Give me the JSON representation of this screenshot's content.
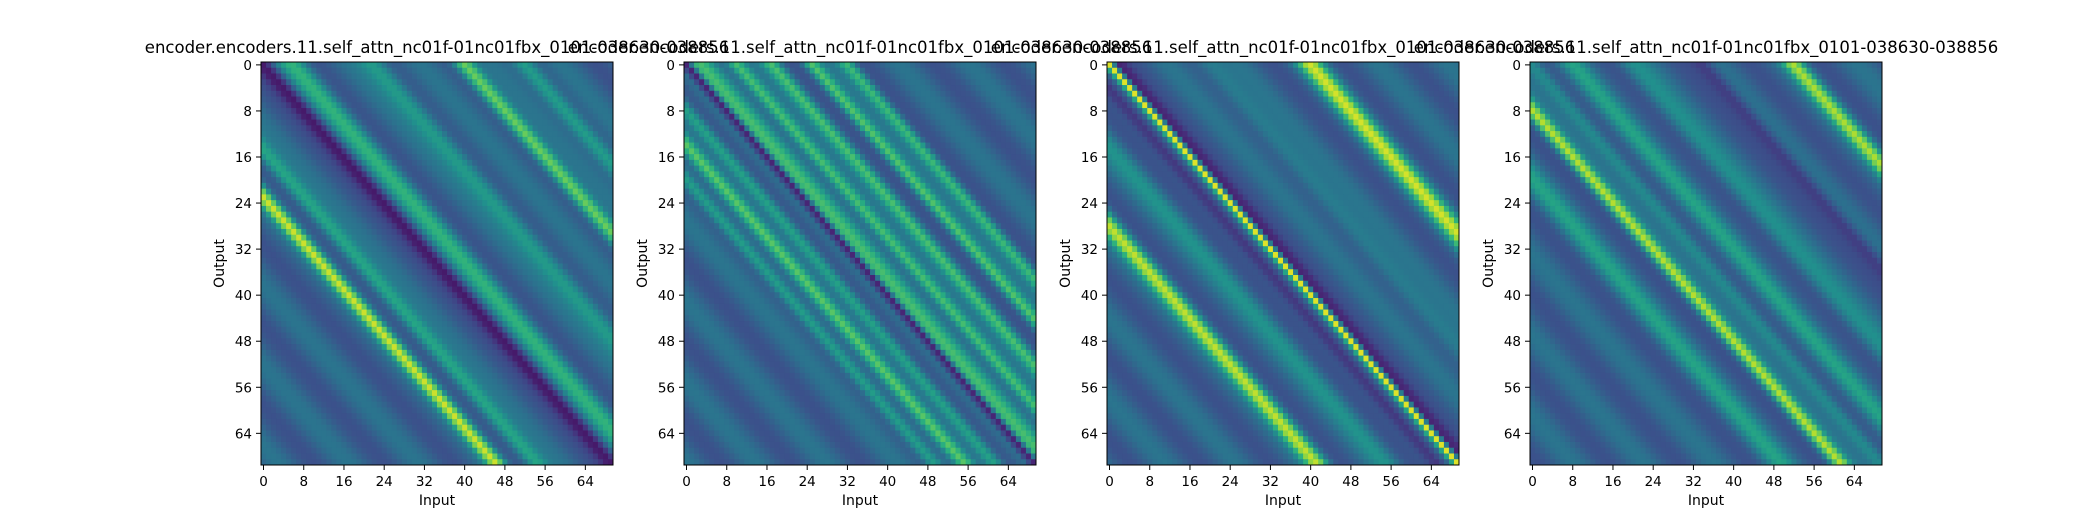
{
  "chart_data": [
    {
      "type": "heatmap",
      "title": "encoder.encoders.11.self_attn_nc01f-01nc01fbx_0101-038630-038856",
      "xlabel": "Input",
      "ylabel": "Output",
      "x_ticks": [
        "0",
        "8",
        "16",
        "24",
        "32",
        "40",
        "48",
        "56",
        "64"
      ],
      "y_ticks": [
        "0",
        "8",
        "16",
        "24",
        "32",
        "40",
        "48",
        "56",
        "64"
      ],
      "xlim": [
        0,
        70
      ],
      "ylim": [
        70,
        0
      ],
      "colormap": "viridis",
      "pattern": "diagonal bands parallel to main diagonal; bright band near offset -23; dim band near main diagonal",
      "bands": [
        {
          "offset": -23,
          "width": 1.3,
          "strength": 0.55
        },
        {
          "offset": -15,
          "width": 1.6,
          "strength": 0.3
        },
        {
          "offset": 6,
          "width": 2.0,
          "strength": 0.3
        },
        {
          "offset": 22,
          "width": 2.0,
          "strength": 0.25
        },
        {
          "offset": 40,
          "width": 1.5,
          "strength": 0.5
        },
        {
          "offset": 52,
          "width": 1.6,
          "strength": 0.3
        },
        {
          "offset": 0,
          "width": 1.5,
          "strength": -0.25
        }
      ]
    },
    {
      "type": "heatmap",
      "title": "encoder.encoders.11.self_attn_nc01f-01nc01fbx_0101-038630-038856",
      "xlabel": "Input",
      "ylabel": "Output",
      "x_ticks": [
        "0",
        "8",
        "16",
        "24",
        "32",
        "40",
        "48",
        "56",
        "64"
      ],
      "y_ticks": [
        "0",
        "8",
        "16",
        "24",
        "32",
        "40",
        "48",
        "56",
        "64"
      ],
      "xlim": [
        0,
        70
      ],
      "ylim": [
        70,
        0
      ],
      "colormap": "viridis",
      "pattern": "dark main diagonal flanked by multiple bright parallel bands",
      "bands": [
        {
          "offset": 0,
          "width": 0.9,
          "strength": -0.45
        },
        {
          "offset": 3,
          "width": 2.5,
          "strength": 0.35
        },
        {
          "offset": 10,
          "width": 1.3,
          "strength": 0.4
        },
        {
          "offset": 17,
          "width": 1.3,
          "strength": 0.35
        },
        {
          "offset": 25,
          "width": 1.2,
          "strength": 0.4
        },
        {
          "offset": 32,
          "width": 1.2,
          "strength": 0.35
        },
        {
          "offset": -8,
          "width": 1.3,
          "strength": 0.3
        },
        {
          "offset": -14,
          "width": 1.3,
          "strength": 0.35
        },
        {
          "offset": -20,
          "width": 1.3,
          "strength": 0.3
        }
      ]
    },
    {
      "type": "heatmap",
      "title": "encoder.encoders.11.self_attn_nc01f-01nc01fbx_0101-038630-038856",
      "xlabel": "Input",
      "ylabel": "Output",
      "x_ticks": [
        "0",
        "8",
        "16",
        "24",
        "32",
        "40",
        "48",
        "56",
        "64"
      ],
      "y_ticks": [
        "0",
        "8",
        "16",
        "24",
        "32",
        "40",
        "48",
        "56",
        "64"
      ],
      "xlim": [
        0,
        70
      ],
      "ylim": [
        70,
        0
      ],
      "colormap": "viridis",
      "pattern": "sharp bright main diagonal; bright bands at +40 and -28 offsets",
      "bands": [
        {
          "offset": 0,
          "width": 0.7,
          "strength": 0.65
        },
        {
          "offset": 40,
          "width": 1.8,
          "strength": 0.55
        },
        {
          "offset": -28,
          "width": 1.6,
          "strength": 0.55
        },
        {
          "offset": 2,
          "width": 1.2,
          "strength": -0.2
        },
        {
          "offset": -4,
          "width": 1.4,
          "strength": -0.2
        },
        {
          "offset": 20,
          "width": 2.0,
          "strength": 0.15
        },
        {
          "offset": -14,
          "width": 2.0,
          "strength": 0.15
        }
      ]
    },
    {
      "type": "heatmap",
      "title": "encoder.encoders.11.self_attn_nc01f-01nc01fbx_0101-038630-038856",
      "xlabel": "Input",
      "ylabel": "Output",
      "x_ticks": [
        "0",
        "8",
        "16",
        "24",
        "32",
        "40",
        "48",
        "56",
        "64"
      ],
      "y_ticks": [
        "0",
        "8",
        "16",
        "24",
        "32",
        "40",
        "48",
        "56",
        "64"
      ],
      "xlim": [
        0,
        70
      ],
      "ylim": [
        70,
        0
      ],
      "colormap": "viridis",
      "pattern": "bright diagonal slightly below main diagonal; bright band near +52 offset",
      "bands": [
        {
          "offset": -8,
          "width": 1.3,
          "strength": 0.55
        },
        {
          "offset": 52,
          "width": 1.5,
          "strength": 0.5
        },
        {
          "offset": 0,
          "width": 1.5,
          "strength": 0.2
        },
        {
          "offset": 8,
          "width": 1.8,
          "strength": 0.2
        },
        {
          "offset": 20,
          "width": 2.0,
          "strength": 0.15
        },
        {
          "offset": -20,
          "width": 2.0,
          "strength": 0.2
        },
        {
          "offset": 34,
          "width": 1.6,
          "strength": -0.15
        }
      ]
    }
  ]
}
